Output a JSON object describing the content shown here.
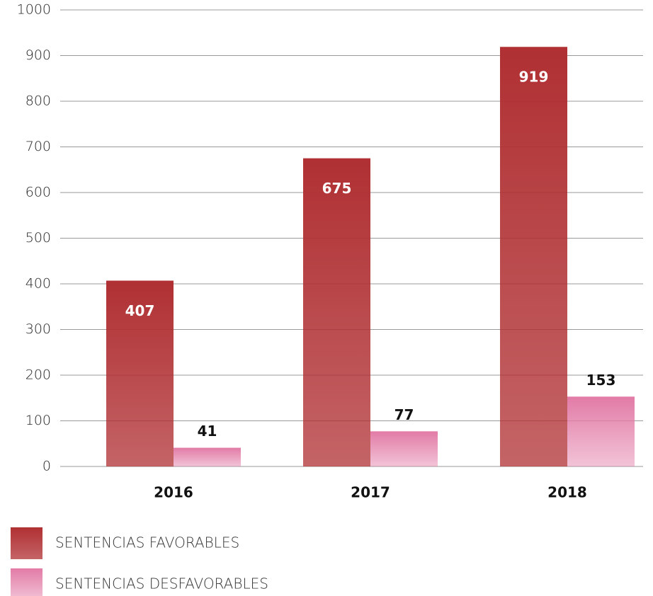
{
  "chart_data": {
    "type": "bar",
    "categories": [
      "2016",
      "2017",
      "2018"
    ],
    "series": [
      {
        "name": "SENTENCIAS FAVORABLES",
        "color": "#b03033",
        "values": [
          407,
          675,
          919
        ]
      },
      {
        "name": "SENTENCIAS DESFAVORABLES",
        "color": "#e27ba6",
        "values": [
          41,
          77,
          153
        ]
      }
    ],
    "ylim": [
      0,
      1000
    ],
    "yticks": [
      0,
      100,
      200,
      300,
      400,
      500,
      600,
      700,
      800,
      900,
      1000
    ],
    "grid": true
  }
}
